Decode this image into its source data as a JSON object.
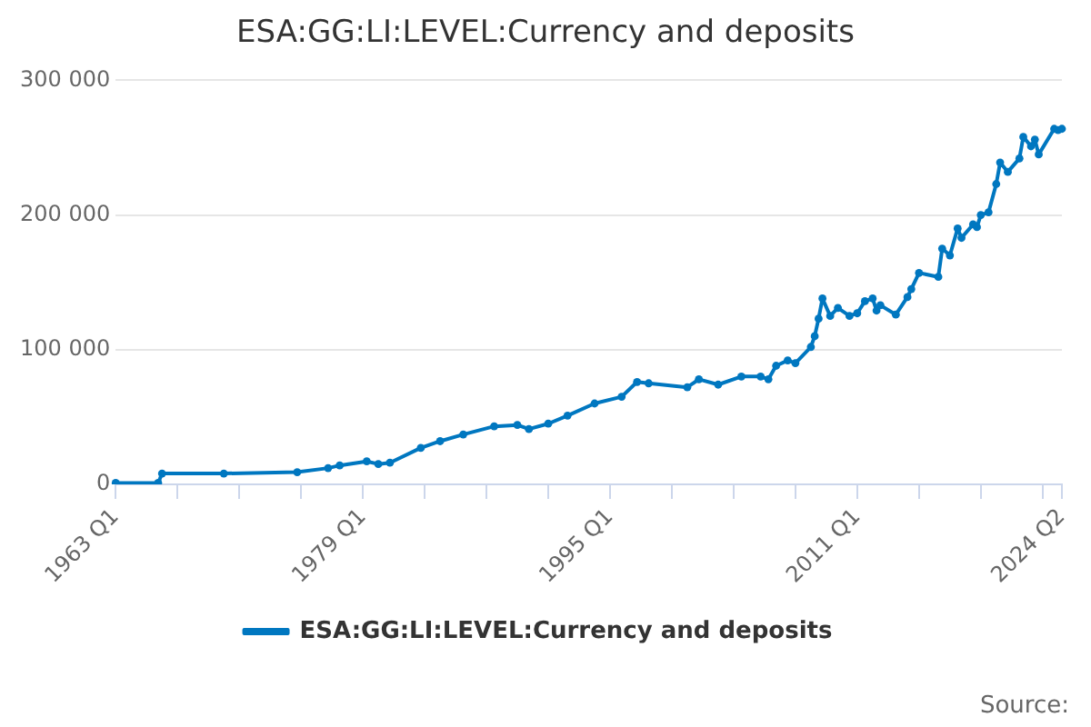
{
  "chart_data": {
    "type": "line",
    "title": "ESA:GG:LI:LEVEL:Currency and deposits",
    "annotations": [
      "Source:"
    ],
    "categories": [
      "1963 Q1",
      null,
      null,
      null,
      null,
      null,
      null,
      null,
      null,
      null,
      null,
      null,
      null,
      null,
      null,
      null,
      null,
      null,
      null,
      null,
      null,
      null,
      null,
      null,
      null,
      null,
      null,
      null,
      null,
      null,
      null,
      null,
      null,
      null,
      null,
      null,
      null,
      null,
      null,
      null,
      null,
      null,
      null,
      null,
      null,
      null,
      null,
      null,
      null,
      null,
      null,
      null,
      null,
      null,
      null,
      null,
      null,
      null,
      null,
      null,
      null,
      null,
      null,
      null,
      "1979 Q1",
      null,
      null,
      null,
      null,
      null,
      null,
      null,
      null,
      null,
      null,
      null,
      null,
      null,
      null,
      null,
      null,
      null,
      null,
      null,
      null,
      null,
      null,
      null,
      null,
      null,
      null,
      null,
      null,
      null,
      null,
      null,
      null,
      null,
      null,
      null,
      null,
      null,
      null,
      null,
      null,
      null,
      null,
      null,
      null,
      null,
      null,
      null,
      null,
      null,
      null,
      null,
      null,
      null,
      null,
      null,
      null,
      null,
      null,
      null,
      null,
      null,
      null,
      null,
      "1995 Q1",
      null,
      null,
      null,
      null,
      null,
      null,
      null,
      null,
      null,
      null,
      null,
      null,
      null,
      null,
      null,
      null,
      null,
      null,
      null,
      null,
      null,
      null,
      null,
      null,
      null,
      null,
      null,
      null,
      null,
      null,
      null,
      null,
      null,
      null,
      null,
      null,
      null,
      null,
      null,
      null,
      null,
      null,
      null,
      null,
      null,
      null,
      null,
      null,
      null,
      null,
      null,
      null,
      null,
      null,
      null,
      null,
      null,
      null,
      null,
      null,
      null,
      null,
      null,
      "2011 Q1",
      null,
      null,
      null,
      null,
      null,
      null,
      null,
      null,
      null,
      null,
      null,
      null,
      null,
      null,
      null,
      null,
      null,
      null,
      null,
      null,
      null,
      null,
      null,
      null,
      null,
      null,
      null,
      null,
      null,
      null,
      null,
      null,
      null,
      null,
      null,
      null,
      null,
      null,
      null,
      null,
      null,
      null,
      null,
      null,
      null,
      null,
      null,
      null,
      null,
      null,
      null,
      null,
      "2024 Q2"
    ],
    "ylim": [
      0,
      300000
    ],
    "yticks": [
      {
        "value": 0,
        "label": "0"
      },
      {
        "value": 100000,
        "label": "100 000"
      },
      {
        "value": 200000,
        "label": "200 000"
      },
      {
        "value": 300000,
        "label": "300 000"
      }
    ],
    "grid": "y",
    "legend": "bottom",
    "marker": "circle",
    "line_style": "solid",
    "series": [
      {
        "name": "ESA:GG:LI:LEVEL:Currency and deposits",
        "color": "#0077c0",
        "values": [
          1000,
          null,
          null,
          null,
          null,
          null,
          null,
          null,
          null,
          null,
          null,
          1000,
          8000,
          null,
          null,
          null,
          null,
          null,
          null,
          null,
          null,
          null,
          null,
          null,
          null,
          null,
          null,
          null,
          8000,
          null,
          null,
          null,
          null,
          null,
          null,
          null,
          null,
          null,
          null,
          null,
          null,
          null,
          null,
          null,
          null,
          null,
          null,
          9000,
          null,
          null,
          null,
          null,
          null,
          null,
          null,
          12000,
          null,
          null,
          14000,
          null,
          null,
          null,
          null,
          null,
          null,
          17000,
          null,
          null,
          15000,
          null,
          null,
          16000,
          null,
          null,
          null,
          null,
          null,
          null,
          null,
          27000,
          null,
          null,
          null,
          null,
          32000,
          null,
          null,
          null,
          null,
          null,
          37000,
          null,
          null,
          null,
          null,
          null,
          null,
          null,
          43000,
          null,
          null,
          null,
          null,
          null,
          44000,
          null,
          null,
          41000,
          null,
          null,
          null,
          null,
          45000,
          null,
          null,
          null,
          null,
          51000,
          null,
          null,
          null,
          null,
          null,
          null,
          60000,
          null,
          null,
          null,
          null,
          null,
          null,
          65000,
          null,
          null,
          null,
          76000,
          null,
          null,
          75000,
          null,
          null,
          null,
          null,
          null,
          null,
          null,
          null,
          null,
          72000,
          null,
          null,
          78000,
          null,
          null,
          null,
          null,
          74000,
          null,
          null,
          null,
          null,
          null,
          80000,
          null,
          null,
          null,
          null,
          80000,
          null,
          78000,
          null,
          88000,
          null,
          null,
          92000,
          null,
          90000,
          null,
          null,
          null,
          102000,
          110000,
          123000,
          138000,
          null,
          125000,
          null,
          131000,
          null,
          null,
          125000,
          null,
          127000,
          null,
          136000,
          null,
          138000,
          129000,
          133000,
          null,
          null,
          null,
          126000,
          null,
          null,
          139000,
          145000,
          null,
          157000,
          null,
          null,
          null,
          null,
          154000,
          175000,
          null,
          170000,
          null,
          190000,
          183000,
          null,
          null,
          193000,
          191000,
          200000,
          null,
          202000,
          null,
          223000,
          239000,
          null,
          232000,
          null,
          null,
          242000,
          258000,
          null,
          251000,
          256000,
          245000,
          null,
          null,
          null,
          264000,
          263000,
          264000
        ]
      }
    ]
  }
}
